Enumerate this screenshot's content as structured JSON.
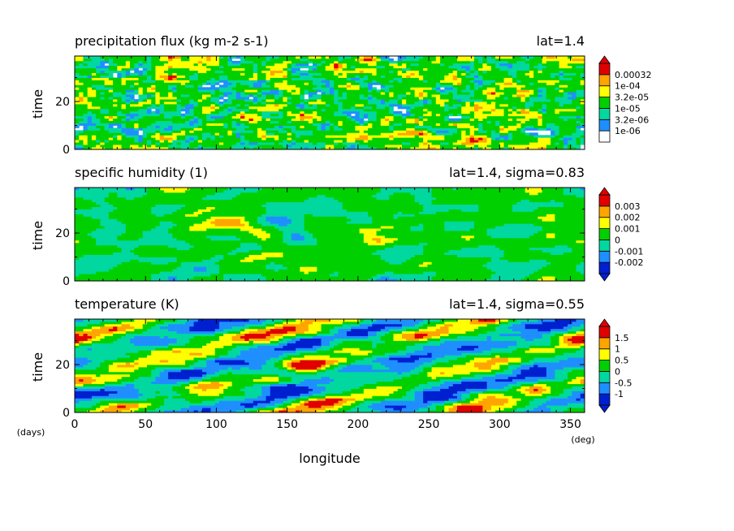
{
  "chart_data": [
    {
      "type": "heatmap",
      "title": "precipitation flux (kg m-2 s-1)",
      "subtitle": "lat=1.4",
      "xlabel": "longitude",
      "ylabel": "time",
      "xlim": [
        0,
        360
      ],
      "ylim": [
        0,
        39
      ],
      "yticks": [
        0,
        20
      ],
      "colorbar": {
        "colors": [
          "#ffffff",
          "#1f8fff",
          "#00d8a0",
          "#00d000",
          "#ffff00",
          "#ffa500",
          "#e00000"
        ],
        "labels": [
          "1e-06",
          "3.2e-06",
          "1e-05",
          "3.2e-05",
          "1e-04",
          "0.00032"
        ],
        "extend_min": false,
        "extend_max": true
      }
    },
    {
      "type": "heatmap",
      "title": "specific humidity (1)",
      "subtitle": "lat=1.4, sigma=0.83",
      "xlabel": "longitude",
      "ylabel": "time",
      "xlim": [
        0,
        360
      ],
      "ylim": [
        0,
        39
      ],
      "yticks": [
        0,
        20
      ],
      "colorbar": {
        "colors": [
          "#0020d0",
          "#1f8fff",
          "#00d8a0",
          "#00d000",
          "#ffff00",
          "#ffa500",
          "#e00000"
        ],
        "labels": [
          "-0.002",
          "-0.001",
          "0",
          "0.001",
          "0.002",
          "0.003"
        ],
        "extend_min": true,
        "extend_max": true
      }
    },
    {
      "type": "heatmap",
      "title": "temperature (K)",
      "subtitle": "lat=1.4, sigma=0.55",
      "xlabel": "longitude",
      "ylabel": "time",
      "xlim": [
        0,
        360
      ],
      "ylim": [
        0,
        39
      ],
      "yticks": [
        0,
        20
      ],
      "xticks": [
        0,
        50,
        100,
        150,
        200,
        250,
        300,
        350
      ],
      "colorbar": {
        "colors": [
          "#0020d0",
          "#1f8fff",
          "#00d8a0",
          "#00d000",
          "#ffff00",
          "#ffa500",
          "#e00000"
        ],
        "labels": [
          "-1",
          "-0.5",
          "0",
          "0.5",
          "1",
          "1.5"
        ],
        "extend_min": true,
        "extend_max": true
      }
    }
  ],
  "axis": {
    "xlabel": "longitude",
    "xunit": "(deg)",
    "yunit": "(days)"
  }
}
